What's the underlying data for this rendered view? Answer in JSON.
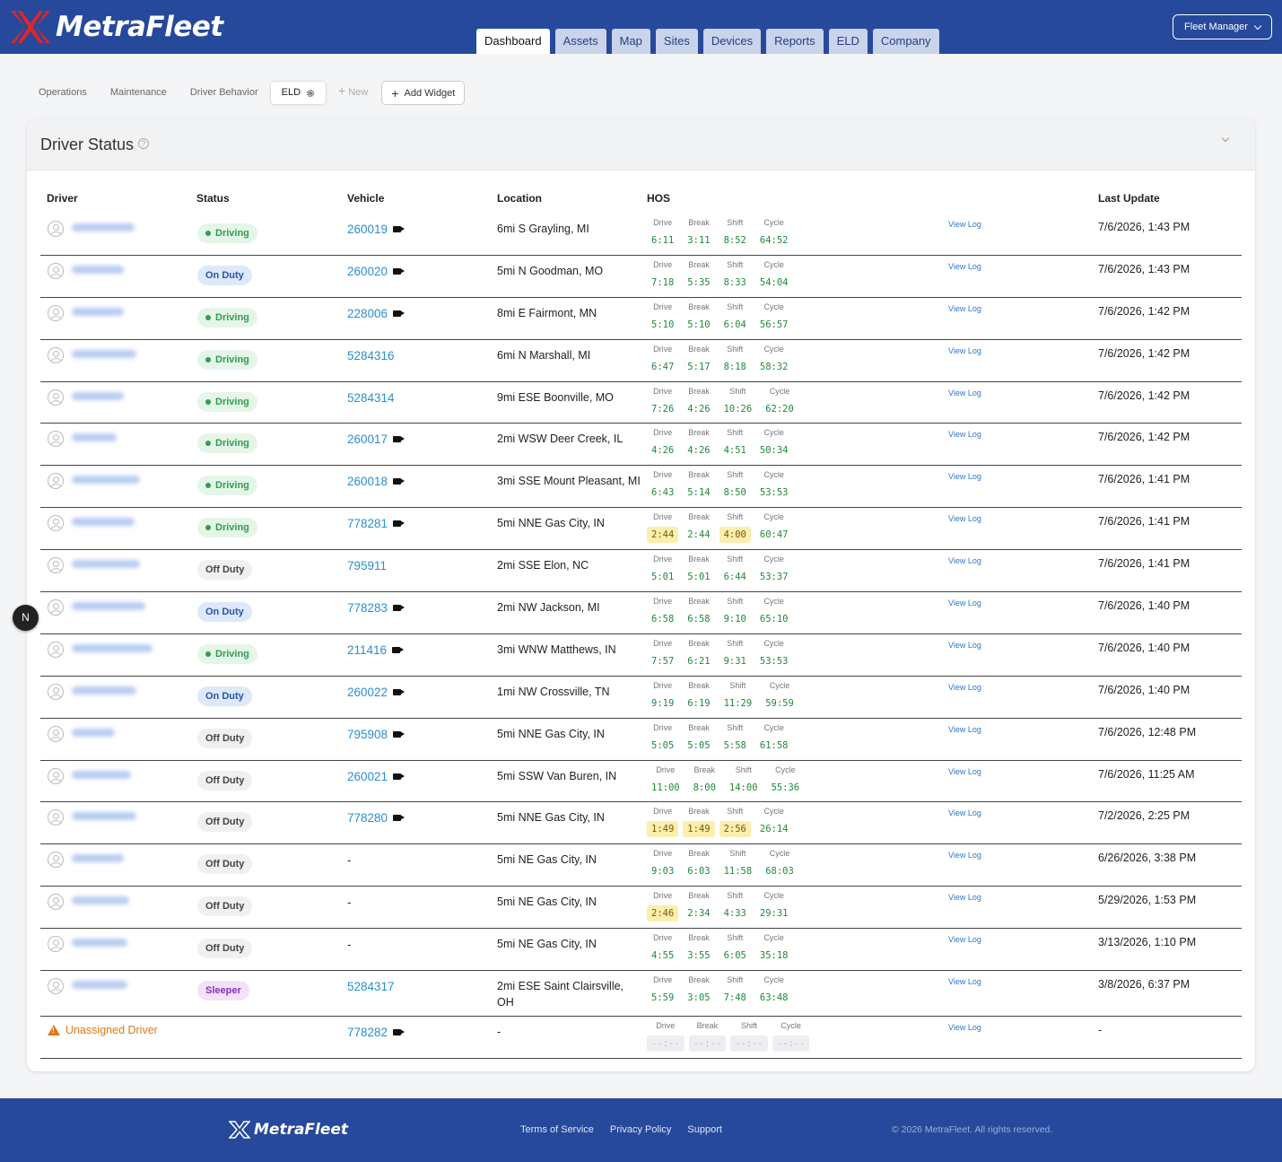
{
  "header": {
    "logo_text": "MetraFleet",
    "nav_tabs": [
      {
        "label": "Dashboard",
        "active": true
      },
      {
        "label": "Assets",
        "active": false
      },
      {
        "label": "Map",
        "active": false
      },
      {
        "label": "Sites",
        "active": false
      },
      {
        "label": "Devices",
        "active": false
      },
      {
        "label": "Reports",
        "active": false
      },
      {
        "label": "ELD",
        "active": false
      },
      {
        "label": "Company",
        "active": false
      }
    ],
    "user_menu_label": "Fleet Manager"
  },
  "subtabs": {
    "items": [
      "Operations",
      "Maintenance",
      "Driver Behavior"
    ],
    "active": "ELD",
    "new_label": "New",
    "add_widget_label": "Add Widget"
  },
  "panel": {
    "title": "Driver Status",
    "columns": {
      "driver": "Driver",
      "status": "Status",
      "vehicle": "Vehicle",
      "location": "Location",
      "hos": "HOS",
      "last_update": "Last Update"
    },
    "hos_labels": [
      "Drive",
      "Break",
      "Shift",
      "Cycle"
    ],
    "view_log_label": "View Log",
    "rows": [
      {
        "status": "Driving",
        "vehicle": "260019",
        "camera": true,
        "location": "6mi S Grayling, MI",
        "hos": [
          "6:11",
          "3:11",
          "8:52",
          "64:52"
        ],
        "warn": [],
        "updated": "7/6/2026, 1:43 PM",
        "name_w": 70
      },
      {
        "status": "On Duty",
        "vehicle": "260020",
        "camera": true,
        "location": "5mi N Goodman, MO",
        "hos": [
          "7:18",
          "5:35",
          "8:33",
          "54:04"
        ],
        "warn": [],
        "updated": "7/6/2026, 1:43 PM",
        "name_w": 58
      },
      {
        "status": "Driving",
        "vehicle": "228006",
        "camera": true,
        "location": "8mi E Fairmont, MN",
        "hos": [
          "5:10",
          "5:10",
          "6:04",
          "56:57"
        ],
        "warn": [],
        "updated": "7/6/2026, 1:42 PM",
        "name_w": 58
      },
      {
        "status": "Driving",
        "vehicle": "5284316",
        "camera": false,
        "location": "6mi N Marshall, MI",
        "hos": [
          "6:47",
          "5:17",
          "8:18",
          "58:32"
        ],
        "warn": [],
        "updated": "7/6/2026, 1:42 PM",
        "name_w": 72
      },
      {
        "status": "Driving",
        "vehicle": "5284314",
        "camera": false,
        "location": "9mi ESE Boonville, MO",
        "hos": [
          "7:26",
          "4:26",
          "10:26",
          "62:20"
        ],
        "warn": [],
        "updated": "7/6/2026, 1:42 PM",
        "name_w": 58
      },
      {
        "status": "Driving",
        "vehicle": "260017",
        "camera": true,
        "location": "2mi WSW Deer Creek, IL",
        "hos": [
          "4:26",
          "4:26",
          "4:51",
          "50:34"
        ],
        "warn": [],
        "updated": "7/6/2026, 1:42 PM",
        "name_w": 50
      },
      {
        "status": "Driving",
        "vehicle": "260018",
        "camera": true,
        "location": "3mi SSE Mount Pleasant, MI",
        "hos": [
          "6:43",
          "5:14",
          "8:50",
          "53:53"
        ],
        "warn": [],
        "updated": "7/6/2026, 1:41 PM",
        "name_w": 76
      },
      {
        "status": "Driving",
        "vehicle": "778281",
        "camera": true,
        "location": "5mi NNE Gas City, IN",
        "hos": [
          "2:44",
          "2:44",
          "4:00",
          "60:47"
        ],
        "warn": [
          0,
          2
        ],
        "updated": "7/6/2026, 1:41 PM",
        "name_w": 70
      },
      {
        "status": "Off Duty",
        "vehicle": "795911",
        "camera": false,
        "location": "2mi SSE Elon, NC",
        "hos": [
          "5:01",
          "5:01",
          "6:44",
          "53:37"
        ],
        "warn": [],
        "updated": "7/6/2026, 1:41 PM",
        "name_w": 76
      },
      {
        "status": "On Duty",
        "vehicle": "778283",
        "camera": true,
        "location": "2mi NW Jackson, MI",
        "hos": [
          "6:58",
          "6:58",
          "9:10",
          "65:10"
        ],
        "warn": [],
        "updated": "7/6/2026, 1:40 PM",
        "name_w": 82
      },
      {
        "status": "Driving",
        "vehicle": "211416",
        "camera": true,
        "location": "3mi WNW Matthews, IN",
        "hos": [
          "7:57",
          "6:21",
          "9:31",
          "53:53"
        ],
        "warn": [],
        "updated": "7/6/2026, 1:40 PM",
        "name_w": 90
      },
      {
        "status": "On Duty",
        "vehicle": "260022",
        "camera": true,
        "location": "1mi NW Crossville, TN",
        "hos": [
          "9:19",
          "6:19",
          "11:29",
          "59:59"
        ],
        "warn": [],
        "updated": "7/6/2026, 1:40 PM",
        "name_w": 72
      },
      {
        "status": "Off Duty",
        "vehicle": "795908",
        "camera": true,
        "location": "5mi NNE Gas City, IN",
        "hos": [
          "5:05",
          "5:05",
          "5:58",
          "61:58"
        ],
        "warn": [],
        "updated": "7/6/2026, 12:48 PM",
        "name_w": 48
      },
      {
        "status": "Off Duty",
        "vehicle": "260021",
        "camera": true,
        "location": "5mi SSW Van Buren, IN",
        "hos": [
          "11:00",
          "8:00",
          "14:00",
          "55:36"
        ],
        "warn": [],
        "updated": "7/6/2026, 11:25 AM",
        "name_w": 66
      },
      {
        "status": "Off Duty",
        "vehicle": "778280",
        "camera": true,
        "location": "5mi NNE Gas City, IN",
        "hos": [
          "1:49",
          "1:49",
          "2:56",
          "26:14"
        ],
        "warn": [
          0,
          1,
          2
        ],
        "updated": "7/2/2026, 2:25 PM",
        "name_w": 72
      },
      {
        "status": "Off Duty",
        "vehicle": "-",
        "camera": false,
        "location": "5mi NE Gas City, IN",
        "hos": [
          "9:03",
          "6:03",
          "11:58",
          "68:03"
        ],
        "warn": [],
        "updated": "6/26/2026, 3:38 PM",
        "name_w": 58
      },
      {
        "status": "Off Duty",
        "vehicle": "-",
        "camera": false,
        "location": "5mi NE Gas City, IN",
        "hos": [
          "2:46",
          "2:34",
          "4:33",
          "29:31"
        ],
        "warn": [
          0
        ],
        "updated": "5/29/2026, 1:53 PM",
        "name_w": 64
      },
      {
        "status": "Off Duty",
        "vehicle": "-",
        "camera": false,
        "location": "5mi NE Gas City, IN",
        "hos": [
          "4:55",
          "3:55",
          "6:05",
          "35:18"
        ],
        "warn": [],
        "updated": "3/13/2026, 1:10 PM",
        "name_w": 62
      },
      {
        "status": "Sleeper",
        "vehicle": "5284317",
        "camera": false,
        "location": "2mi ESE Saint Clairsville, OH",
        "hos": [
          "5:59",
          "3:05",
          "7:48",
          "63:48"
        ],
        "warn": [],
        "updated": "3/8/2026, 6:37 PM",
        "name_w": 62
      }
    ],
    "unassigned": {
      "label": "Unassigned Driver",
      "vehicle": "778282",
      "location": "-",
      "hos": [
        "--:--",
        "--:--",
        "--:--",
        "--:--"
      ],
      "updated": "-"
    }
  },
  "floating_button_label": "N",
  "footer": {
    "logo_text": "MetraFleet",
    "links": [
      "Terms of Service",
      "Privacy Policy",
      "Support"
    ],
    "copyright": "© 2026 MetraFleet. All rights reserved."
  },
  "colors": {
    "brand": "#26499b",
    "link": "#2a8fd1",
    "driving_bg": "#e5f6e8",
    "driving_fg": "#2f9e4f",
    "on_duty_bg": "#dde9fb",
    "on_duty_fg": "#2456a8",
    "off_duty_bg": "#eff0f2",
    "off_duty_fg": "#444444",
    "sleeper_bg": "#f1e2fa",
    "sleeper_fg": "#8a2fbf",
    "warning": "#e07a12"
  }
}
